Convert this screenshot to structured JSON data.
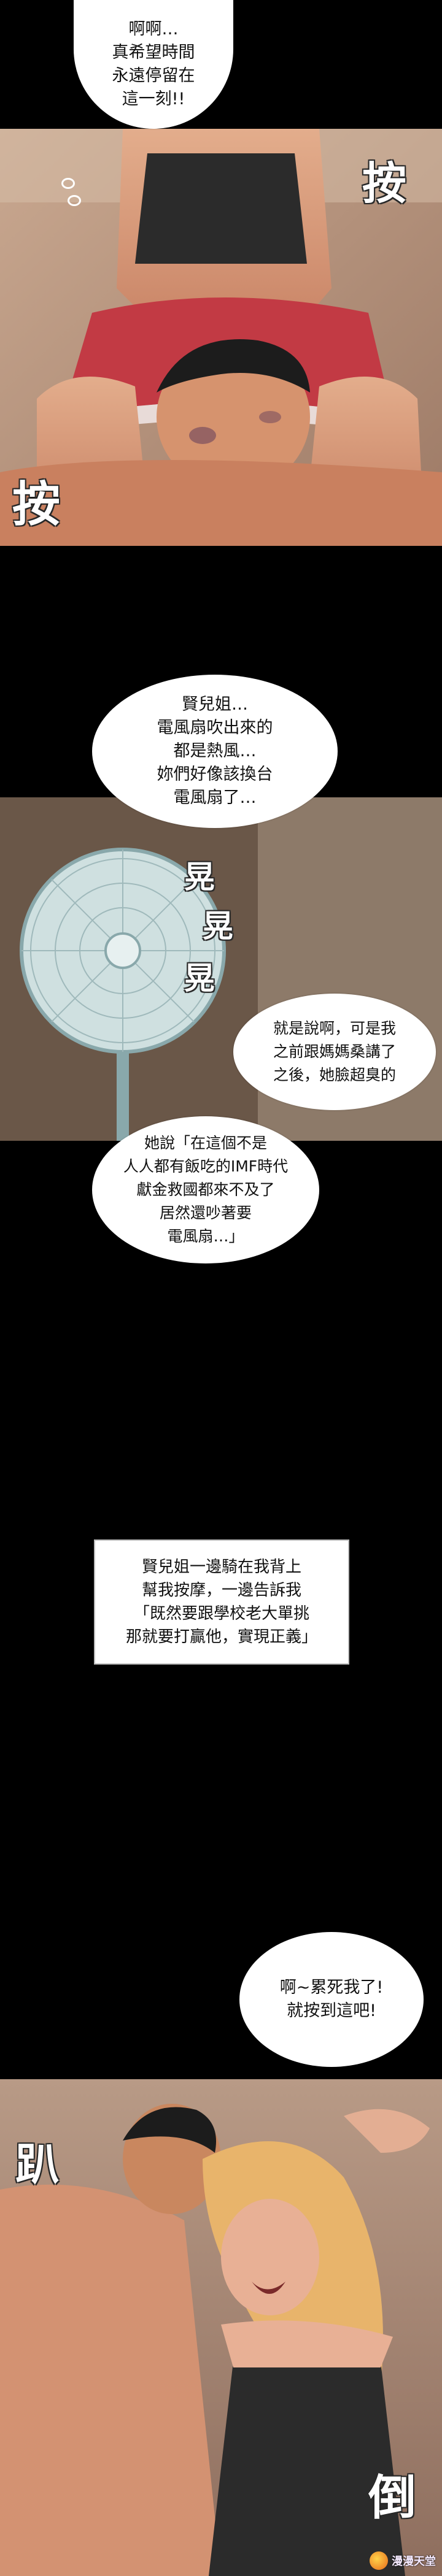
{
  "panel1": {
    "bubble": [
      "啊啊…",
      "真希望時間",
      "永遠停留在",
      "這一刻!!"
    ],
    "sfx_right": "按",
    "sfx_left": "按"
  },
  "panel2": {
    "bubble_top": [
      "賢兒姐…",
      "電風扇吹出來的",
      "都是熱風…",
      "妳們好像該換台",
      "電風扇了…"
    ],
    "sfx_fan": [
      "晃",
      "晃",
      "晃"
    ],
    "bubble_mid": [
      "就是說啊，可是我",
      "之前跟媽媽桑講了",
      "之後，她臉超臭的"
    ],
    "bubble_low": [
      "她說「在這個不是",
      "人人都有飯吃的IMF時代",
      "獻金救國都來不及了",
      "居然還吵著要",
      "電風扇…」"
    ]
  },
  "narration": [
    "賢兒姐一邊騎在我背上",
    "幫我按摩，一邊告訴我",
    "「既然要跟學校老大單挑",
    "那就要打贏他，實現正義」"
  ],
  "panel3": {
    "bubble": [
      "啊~累死我了!",
      "就按到這吧!"
    ],
    "sfx_left": "趴",
    "sfx_right": "倒"
  },
  "watermark": "漫漫天堂",
  "colors": {
    "background": "#000000",
    "bubble": "#ffffff",
    "skin": "#d99a7a",
    "shorts": "#c23a44",
    "hair_blonde": "#e8b46b"
  }
}
